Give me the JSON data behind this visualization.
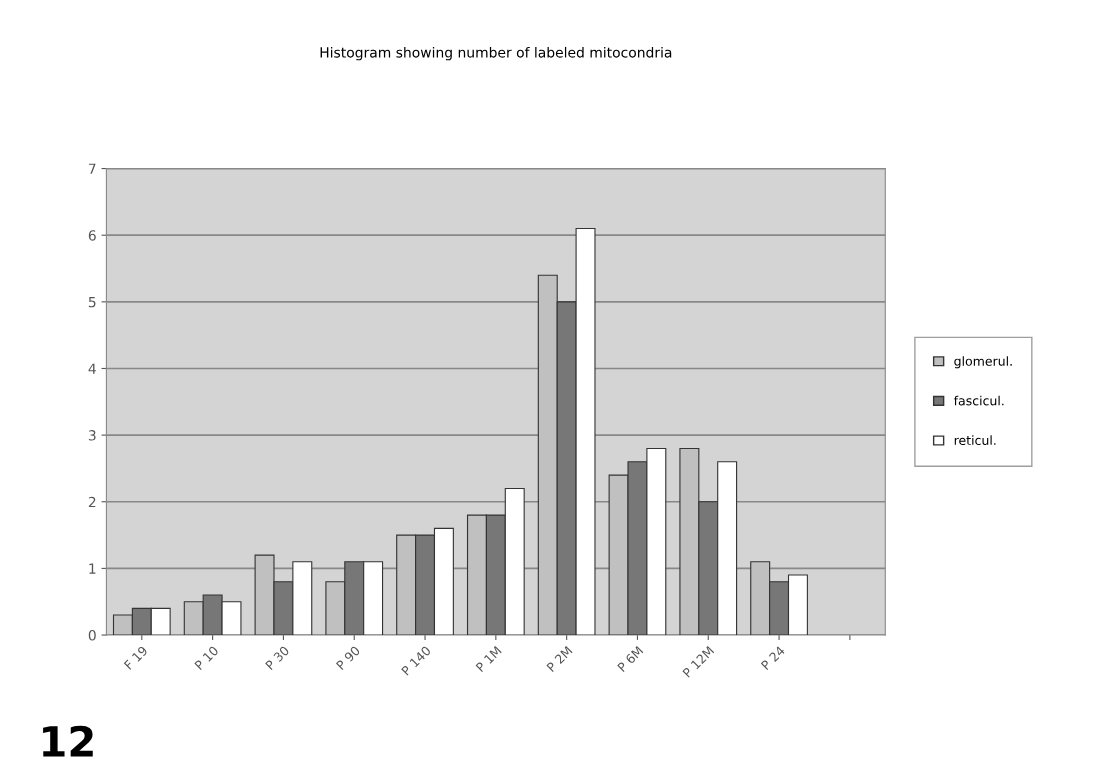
{
  "chart_data": {
    "type": "bar",
    "title": "Histogram showing number of labeled mitocondria",
    "categories": [
      "F 19",
      "P 10",
      "P 30",
      "P 90",
      "P 140",
      "P 1M",
      "P 2M",
      "P 6M",
      "P 12M",
      "P 24",
      null
    ],
    "series": [
      {
        "name": "glomerul.",
        "color": "#c0c0c0",
        "values": [
          0.3,
          0.5,
          1.2,
          0.8,
          1.5,
          1.8,
          5.4,
          2.4,
          2.8,
          1.1,
          null
        ]
      },
      {
        "name": "fascicul.",
        "color": "#777777",
        "values": [
          0.4,
          0.6,
          0.8,
          1.1,
          1.5,
          1.8,
          5.0,
          2.6,
          2.0,
          0.8,
          null
        ]
      },
      {
        "name": "reticul.",
        "color": "#ffffff",
        "values": [
          0.4,
          0.5,
          1.1,
          1.1,
          1.6,
          2.2,
          6.1,
          2.8,
          2.6,
          0.9,
          null
        ]
      }
    ],
    "ylim": [
      0,
      7
    ],
    "yticks": [
      0,
      1,
      2,
      3,
      4,
      5,
      6,
      7
    ],
    "grid": "y",
    "legend": "right",
    "annotations": [
      "12"
    ]
  }
}
